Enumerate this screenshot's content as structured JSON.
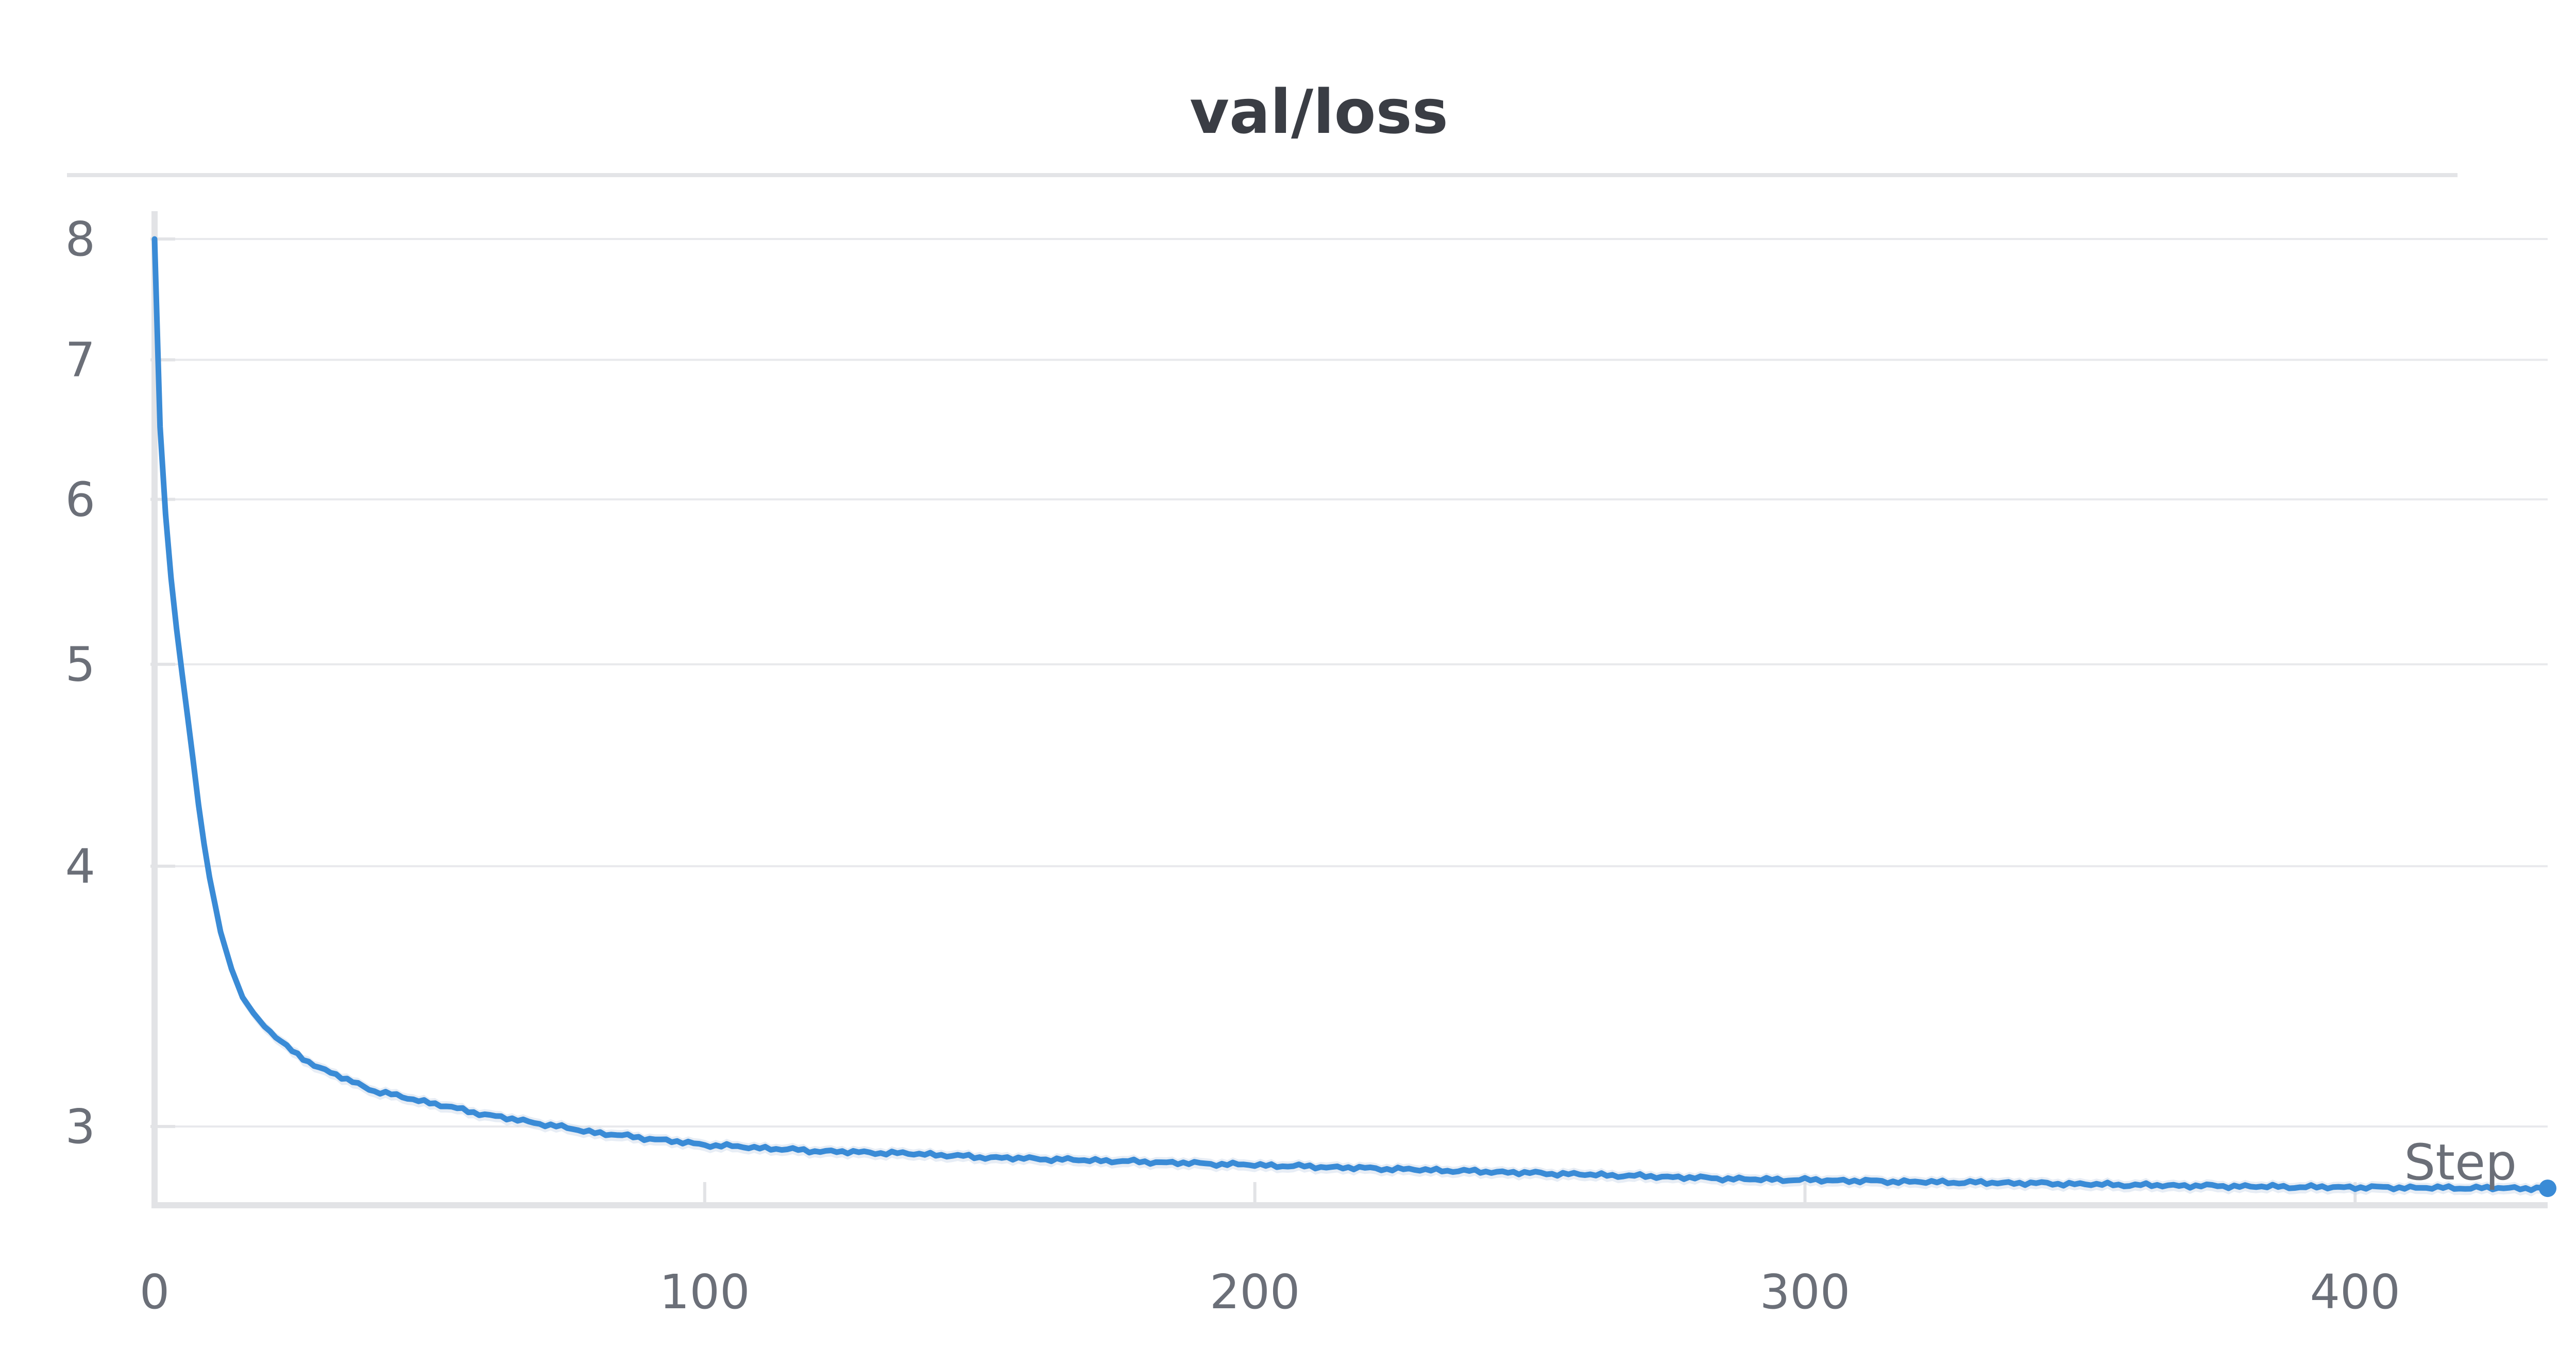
{
  "chart_data": {
    "type": "line",
    "title": "val/loss",
    "xlabel": "Step",
    "ylabel": "",
    "y_scale": "log",
    "xlim": [
      0,
      435
    ],
    "ylim": [
      2.75,
      8.25
    ],
    "x_ticks": [
      0,
      100,
      200,
      300,
      400
    ],
    "x_tick_labels": [
      "0",
      "100",
      "200",
      "300",
      "400"
    ],
    "y_ticks": [
      3,
      4,
      5,
      6,
      7,
      8
    ],
    "y_tick_labels": [
      "3",
      "4",
      "5",
      "6",
      "7",
      "8"
    ],
    "grid": true,
    "series": [
      {
        "color": "#3a8bd6",
        "points": [
          [
            0,
            8.0
          ],
          [
            1,
            6.5
          ],
          [
            2,
            5.9
          ],
          [
            3,
            5.5
          ],
          [
            4,
            5.2
          ],
          [
            5,
            4.95
          ],
          [
            6,
            4.72
          ],
          [
            7,
            4.5
          ],
          [
            8,
            4.28
          ],
          [
            9,
            4.1
          ],
          [
            10,
            3.95
          ],
          [
            12,
            3.72
          ],
          [
            14,
            3.57
          ],
          [
            16,
            3.46
          ],
          [
            18,
            3.4
          ],
          [
            20,
            3.35
          ],
          [
            25,
            3.26
          ],
          [
            30,
            3.2
          ],
          [
            35,
            3.16
          ],
          [
            40,
            3.12
          ],
          [
            45,
            3.1
          ],
          [
            50,
            3.08
          ],
          [
            60,
            3.04
          ],
          [
            70,
            3.01
          ],
          [
            80,
            2.98
          ],
          [
            90,
            2.96
          ],
          [
            100,
            2.94
          ],
          [
            110,
            2.93
          ],
          [
            120,
            2.92
          ],
          [
            130,
            2.915
          ],
          [
            140,
            2.91
          ],
          [
            150,
            2.9
          ],
          [
            160,
            2.895
          ],
          [
            170,
            2.89
          ],
          [
            180,
            2.885
          ],
          [
            190,
            2.88
          ],
          [
            200,
            2.875
          ],
          [
            210,
            2.87
          ],
          [
            220,
            2.865
          ],
          [
            230,
            2.86
          ],
          [
            240,
            2.855
          ],
          [
            250,
            2.85
          ],
          [
            260,
            2.845
          ],
          [
            270,
            2.84
          ],
          [
            280,
            2.835
          ],
          [
            290,
            2.83
          ],
          [
            300,
            2.828
          ],
          [
            310,
            2.825
          ],
          [
            320,
            2.822
          ],
          [
            330,
            2.82
          ],
          [
            340,
            2.818
          ],
          [
            350,
            2.815
          ],
          [
            360,
            2.812
          ],
          [
            370,
            2.81
          ],
          [
            380,
            2.808
          ],
          [
            390,
            2.806
          ],
          [
            400,
            2.805
          ],
          [
            410,
            2.804
          ],
          [
            420,
            2.803
          ],
          [
            435,
            2.802
          ]
        ]
      }
    ],
    "colors": {
      "line": "#3a8bd6",
      "line_band": "#c9d8e8",
      "grid": "#e8e9ec",
      "axis": "#e2e3e6",
      "tick_text": "#6b6f78",
      "title_text": "#3a3d44"
    }
  }
}
